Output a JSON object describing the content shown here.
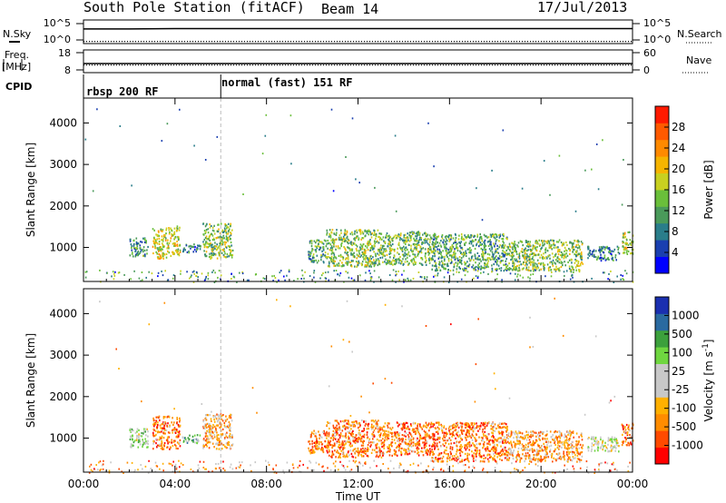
{
  "header": {
    "title": "South Pole Station (fitACF)",
    "beam": "Beam 14",
    "date": "17/Jul/2013"
  },
  "side_labels": {
    "nsky": "N.Sky",
    "freq": "Freq.",
    "freq_unit": "[MHz]",
    "cpid": "CPID",
    "nsearch": "N.Search",
    "nave": "Nave"
  },
  "cpid_labels": [
    "rbsp 200 RF",
    "normal (fast) 151 RF"
  ],
  "chart_data": [
    {
      "type": "line",
      "name": "noise",
      "ylabels_left": [
        "10^5",
        "10^0"
      ],
      "ylabels_right": [
        "10^5",
        "10^0"
      ],
      "series": [
        {
          "name": "N.Sky",
          "style": "solid",
          "x": [
            0,
            2,
            4,
            6,
            8,
            10,
            12,
            14,
            16,
            18,
            20,
            22,
            24
          ],
          "y": [
            3.2,
            3.2,
            3.3,
            3.3,
            3.3,
            3.3,
            3.3,
            3.3,
            3.3,
            3.3,
            3.3,
            3.3,
            3.3
          ]
        },
        {
          "name": "N.Search",
          "style": "dotted",
          "x": [
            0,
            2,
            4,
            6,
            8,
            10,
            12,
            14,
            16,
            18,
            20,
            22,
            24
          ],
          "y": [
            1.0,
            1.0,
            1.0,
            1.0,
            1.0,
            1.0,
            1.0,
            1.0,
            1.0,
            1.0,
            1.0,
            1.0,
            1.0
          ]
        }
      ]
    },
    {
      "type": "line",
      "name": "frequency",
      "ylabels_left": [
        "18",
        "8"
      ],
      "ylabels_right": [
        "60",
        "0"
      ],
      "series": [
        {
          "name": "Freq.",
          "style": "solid",
          "x": [
            0,
            6,
            12,
            18,
            24
          ],
          "y": [
            12,
            12,
            12,
            12,
            12
          ]
        },
        {
          "name": "Nave",
          "style": "dotted",
          "x": [
            0,
            6,
            12,
            18,
            24
          ],
          "y": [
            20,
            20,
            20,
            20,
            20
          ]
        }
      ]
    },
    {
      "type": "heatmap",
      "name": "power",
      "ylabel": "Slant Range [km]",
      "yticks": [
        1000,
        2000,
        3000,
        4000
      ],
      "ylim": [
        180,
        4600
      ],
      "xlim": [
        0,
        24
      ],
      "colorbar_label": "Power [dB]",
      "colorbar_ticks": [
        "28",
        "24",
        "20",
        "16",
        "12",
        "8",
        "4"
      ],
      "colorbar_colors": [
        "#0000ff",
        "#1a3fb0",
        "#2a7d8a",
        "#4a9a5a",
        "#6abf3a",
        "#c8d020",
        "#f5b400",
        "#ff8a00",
        "#ff5a00",
        "#ff1a00"
      ],
      "clusters": [
        {
          "t0": 2.0,
          "t1": 2.8,
          "r0": 800,
          "r1": 1250,
          "level": 0.3
        },
        {
          "t0": 3.0,
          "t1": 4.2,
          "r0": 750,
          "r1": 1500,
          "level": 0.55
        },
        {
          "t0": 4.3,
          "t1": 5.1,
          "r0": 900,
          "r1": 1100,
          "level": 0.25
        },
        {
          "t0": 5.2,
          "t1": 6.5,
          "r0": 750,
          "r1": 1600,
          "level": 0.45
        },
        {
          "t0": 9.8,
          "t1": 10.6,
          "r0": 650,
          "r1": 1200,
          "level": 0.35
        },
        {
          "t0": 10.6,
          "t1": 13.0,
          "r0": 550,
          "r1": 1450,
          "level": 0.45
        },
        {
          "t0": 13.0,
          "t1": 15.2,
          "r0": 600,
          "r1": 1400,
          "level": 0.4
        },
        {
          "t0": 15.2,
          "t1": 18.5,
          "r0": 450,
          "r1": 1350,
          "level": 0.35
        },
        {
          "t0": 18.5,
          "t1": 21.8,
          "r0": 450,
          "r1": 1200,
          "level": 0.45
        },
        {
          "t0": 22.0,
          "t1": 23.4,
          "r0": 700,
          "r1": 1050,
          "level": 0.25
        },
        {
          "t0": 23.5,
          "t1": 24.0,
          "r0": 850,
          "r1": 1400,
          "level": 0.55
        }
      ]
    },
    {
      "type": "heatmap",
      "name": "velocity",
      "ylabel": "Slant Range [km]",
      "yticks": [
        1000,
        2000,
        3000,
        4000
      ],
      "ylim": [
        180,
        4600
      ],
      "xlim": [
        0,
        24
      ],
      "colorbar_label": "Velocity [m s",
      "colorbar_label_sup": "-1",
      "colorbar_label_end": "]",
      "colorbar_ticks": [
        "1000",
        "500",
        "100",
        "25",
        "-25",
        "-100",
        "-500",
        "-1000"
      ],
      "colorbar_colors": [
        "#ff0000",
        "#ff4a00",
        "#ff8c00",
        "#ffb000",
        "#c8c8c8",
        "#c8c8c8",
        "#6fd640",
        "#3ca03c",
        "#2a6aa0",
        "#1a2fb0"
      ],
      "clusters": [
        {
          "t0": 2.0,
          "t1": 2.8,
          "r0": 800,
          "r1": 1250,
          "level": 0.6
        },
        {
          "t0": 3.0,
          "t1": 4.2,
          "r0": 750,
          "r1": 1550,
          "level": 0.2
        },
        {
          "t0": 4.3,
          "t1": 5.1,
          "r0": 900,
          "r1": 1100,
          "level": 0.65
        },
        {
          "t0": 5.2,
          "t1": 6.5,
          "r0": 750,
          "r1": 1600,
          "level": 0.3
        },
        {
          "t0": 9.8,
          "t1": 10.6,
          "r0": 650,
          "r1": 1200,
          "level": 0.2
        },
        {
          "t0": 10.6,
          "t1": 13.0,
          "r0": 550,
          "r1": 1450,
          "level": 0.2
        },
        {
          "t0": 13.0,
          "t1": 15.2,
          "r0": 600,
          "r1": 1400,
          "level": 0.22
        },
        {
          "t0": 15.2,
          "t1": 18.5,
          "r0": 450,
          "r1": 1400,
          "level": 0.2
        },
        {
          "t0": 18.5,
          "t1": 21.8,
          "r0": 450,
          "r1": 1200,
          "level": 0.3
        },
        {
          "t0": 22.0,
          "t1": 23.4,
          "r0": 700,
          "r1": 1050,
          "level": 0.5
        },
        {
          "t0": 23.5,
          "t1": 24.0,
          "r0": 850,
          "r1": 1400,
          "level": 0.22
        }
      ]
    }
  ],
  "x_axis": {
    "ticks": [
      "00:00",
      "04:00",
      "08:00",
      "12:00",
      "16:00",
      "20:00",
      "00:00"
    ],
    "tick_hours": [
      0,
      4,
      8,
      12,
      16,
      20,
      24
    ],
    "label": "Time UT"
  }
}
